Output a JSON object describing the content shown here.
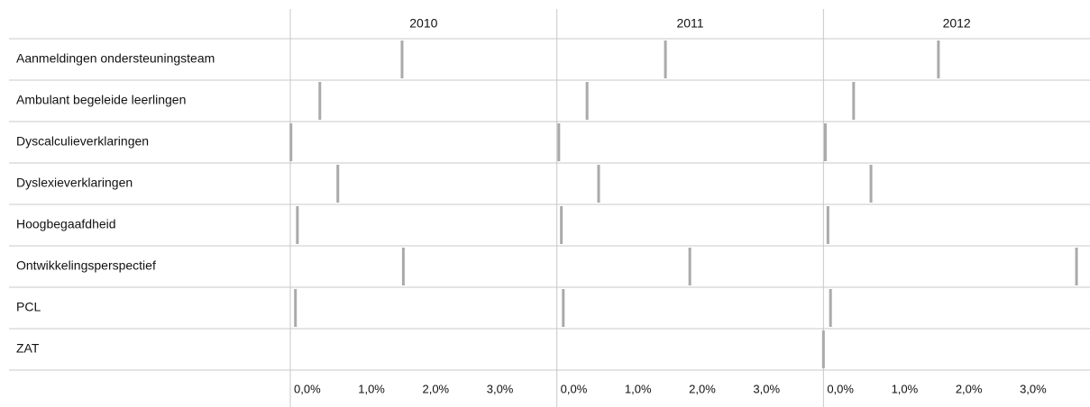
{
  "chart_data": {
    "type": "tick",
    "categories": [
      "Aanmeldingen ondersteuningsteam",
      "Ambulant begeleide leerlingen",
      "Dyscalculieverklaringen",
      "Dyslexieverklaringen",
      "Hoogbegaafdheid",
      "Ontwikkelingsperspectief",
      "PCL",
      "ZAT"
    ],
    "series": [
      {
        "name": "2010",
        "color": "#aaaaaa",
        "values": [
          1.74,
          0.46,
          0.01,
          0.74,
          0.11,
          1.76,
          0.08,
          null
        ]
      },
      {
        "name": "2011",
        "color": "#aaaaaa",
        "values": [
          1.69,
          0.47,
          0.03,
          0.65,
          0.07,
          2.07,
          0.1,
          null
        ]
      },
      {
        "name": "2012",
        "color": "#aaaaaa",
        "values": [
          1.79,
          0.47,
          0.03,
          0.74,
          0.07,
          3.94,
          0.11,
          0.0
        ]
      }
    ],
    "xlim": [
      0,
      4.15
    ],
    "xticks": [
      {
        "value": 0,
        "label": "0,0%"
      },
      {
        "value": 1,
        "label": "1,0%"
      },
      {
        "value": 2,
        "label": "2,0%"
      },
      {
        "value": 3,
        "label": "3,0%"
      }
    ],
    "grid": false
  }
}
